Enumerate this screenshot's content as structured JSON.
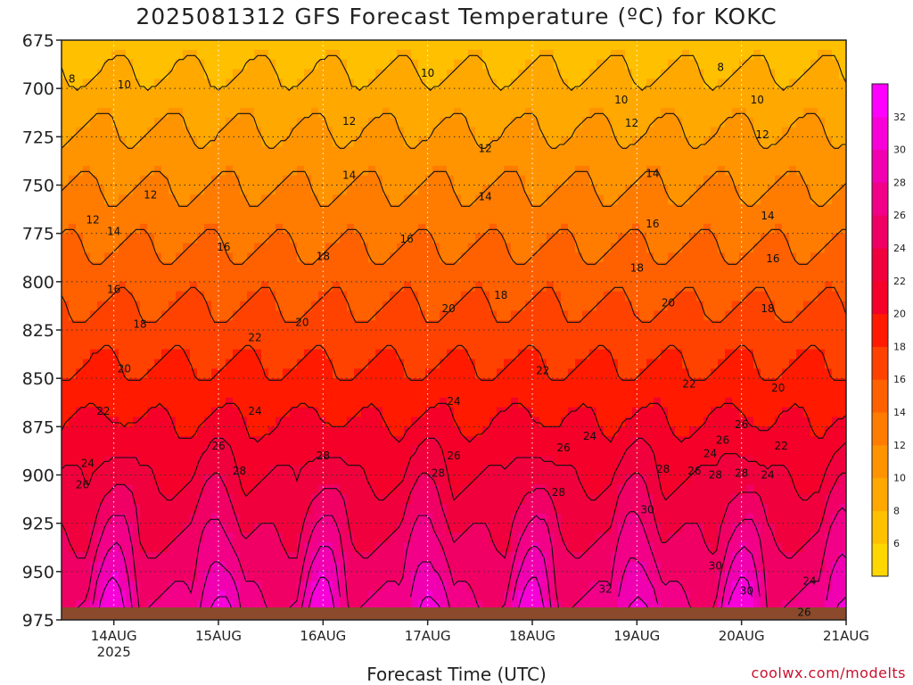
{
  "chart_data": {
    "type": "heatmap",
    "title": "2025081312 GFS Forecast Temperature (ºC) for KOKC",
    "xlabel": "Forecast Time (UTC)",
    "ylabel": "",
    "y_axis": {
      "scale": "pressure (inverted)",
      "ticks": [
        675,
        700,
        725,
        750,
        775,
        800,
        825,
        850,
        875,
        900,
        925,
        950,
        975
      ],
      "range": [
        975,
        675
      ]
    },
    "x_axis": {
      "ticks": [
        {
          "label": "14AUG",
          "sub": "2025",
          "day": 14
        },
        {
          "label": "15AUG",
          "sub": "",
          "day": 15
        },
        {
          "label": "16AUG",
          "sub": "",
          "day": 16
        },
        {
          "label": "17AUG",
          "sub": "",
          "day": 17
        },
        {
          "label": "18AUG",
          "sub": "",
          "day": 18
        },
        {
          "label": "19AUG",
          "sub": "",
          "day": 19
        },
        {
          "label": "20AUG",
          "sub": "",
          "day": 20
        },
        {
          "label": "21AUG",
          "sub": "",
          "day": 21
        }
      ],
      "range_days": [
        13.5,
        21.0
      ]
    },
    "grid": true,
    "colorbar": {
      "ticks": [
        6,
        8,
        10,
        12,
        14,
        16,
        18,
        20,
        22,
        24,
        26,
        28,
        30,
        32
      ],
      "colors": [
        "#ffd700",
        "#ffc000",
        "#ffa800",
        "#ff9400",
        "#ff7c00",
        "#ff6000",
        "#ff4200",
        "#ff1a00",
        "#f40028",
        "#f0003c",
        "#f00064",
        "#f20088",
        "#f000b0",
        "#f800d8",
        "#ff00ff"
      ],
      "range": [
        4,
        34
      ]
    },
    "contour_labels": [
      {
        "value": 8,
        "day": 13.6,
        "p": 695
      },
      {
        "value": 10,
        "day": 14.1,
        "p": 698
      },
      {
        "value": 12,
        "day": 13.8,
        "p": 768
      },
      {
        "value": 14,
        "day": 14.0,
        "p": 774
      },
      {
        "value": 12,
        "day": 14.35,
        "p": 755
      },
      {
        "value": 16,
        "day": 14.0,
        "p": 804
      },
      {
        "value": 18,
        "day": 14.25,
        "p": 822
      },
      {
        "value": 20,
        "day": 14.1,
        "p": 845
      },
      {
        "value": 22,
        "day": 13.9,
        "p": 867
      },
      {
        "value": 24,
        "day": 13.75,
        "p": 894
      },
      {
        "value": 26,
        "day": 13.7,
        "p": 905
      },
      {
        "value": 16,
        "day": 15.05,
        "p": 782
      },
      {
        "value": 22,
        "day": 15.35,
        "p": 829
      },
      {
        "value": 24,
        "day": 15.35,
        "p": 867
      },
      {
        "value": 26,
        "day": 15.0,
        "p": 885
      },
      {
        "value": 28,
        "day": 15.2,
        "p": 898
      },
      {
        "value": 18,
        "day": 16.0,
        "p": 787
      },
      {
        "value": 20,
        "day": 15.8,
        "p": 821
      },
      {
        "value": 28,
        "day": 16.0,
        "p": 890
      },
      {
        "value": 10,
        "day": 17.0,
        "p": 692
      },
      {
        "value": 12,
        "day": 16.25,
        "p": 717
      },
      {
        "value": 14,
        "day": 16.25,
        "p": 745
      },
      {
        "value": 16,
        "day": 16.8,
        "p": 778
      },
      {
        "value": 20,
        "day": 17.2,
        "p": 814
      },
      {
        "value": 24,
        "day": 17.25,
        "p": 862
      },
      {
        "value": 26,
        "day": 17.25,
        "p": 890
      },
      {
        "value": 28,
        "day": 17.1,
        "p": 899
      },
      {
        "value": 12,
        "day": 17.55,
        "p": 731
      },
      {
        "value": 14,
        "day": 17.55,
        "p": 756
      },
      {
        "value": 18,
        "day": 17.7,
        "p": 807
      },
      {
        "value": 22,
        "day": 18.1,
        "p": 846
      },
      {
        "value": 24,
        "day": 18.55,
        "p": 880
      },
      {
        "value": 26,
        "day": 18.3,
        "p": 886
      },
      {
        "value": 28,
        "day": 18.25,
        "p": 909
      },
      {
        "value": 10,
        "day": 18.85,
        "p": 706
      },
      {
        "value": 12,
        "day": 18.95,
        "p": 718
      },
      {
        "value": 14,
        "day": 19.15,
        "p": 744
      },
      {
        "value": 16,
        "day": 19.15,
        "p": 770
      },
      {
        "value": 18,
        "day": 19.0,
        "p": 793
      },
      {
        "value": 20,
        "day": 19.3,
        "p": 811
      },
      {
        "value": 22,
        "day": 19.5,
        "p": 853
      },
      {
        "value": 28,
        "day": 19.25,
        "p": 897
      },
      {
        "value": 30,
        "day": 19.1,
        "p": 918
      },
      {
        "value": 32,
        "day": 18.7,
        "p": 959
      },
      {
        "value": 26,
        "day": 19.55,
        "p": 898
      },
      {
        "value": 24,
        "day": 19.7,
        "p": 889
      },
      {
        "value": 26,
        "day": 19.82,
        "p": 882
      },
      {
        "value": 28,
        "day": 19.75,
        "p": 900
      },
      {
        "value": 26,
        "day": 20.0,
        "p": 874
      },
      {
        "value": 28,
        "day": 20.0,
        "p": 899
      },
      {
        "value": 30,
        "day": 19.75,
        "p": 947
      },
      {
        "value": 30,
        "day": 20.05,
        "p": 960
      },
      {
        "value": 8,
        "day": 19.8,
        "p": 689
      },
      {
        "value": 10,
        "day": 20.15,
        "p": 706
      },
      {
        "value": 12,
        "day": 20.2,
        "p": 724
      },
      {
        "value": 14,
        "day": 20.25,
        "p": 766
      },
      {
        "value": 16,
        "day": 20.3,
        "p": 788
      },
      {
        "value": 18,
        "day": 20.25,
        "p": 814
      },
      {
        "value": 20,
        "day": 20.35,
        "p": 855
      },
      {
        "value": 22,
        "day": 20.38,
        "p": 885
      },
      {
        "value": 24,
        "day": 20.25,
        "p": 900
      },
      {
        "value": 24,
        "day": 20.65,
        "p": 955
      },
      {
        "value": 26,
        "day": 20.6,
        "p": 971
      }
    ]
  },
  "credit": "coolwx.com/modelts",
  "colors": {
    "ground": "#8b4a2b",
    "contour": "#111111",
    "grid": "#888888"
  }
}
